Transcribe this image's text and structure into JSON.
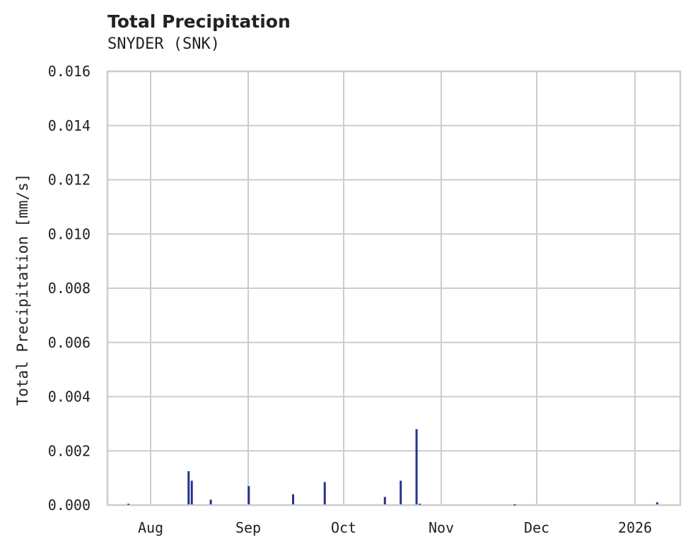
{
  "chart_data": {
    "type": "bar",
    "title": "Total Precipitation",
    "subtitle": "SNYDER (SNK)",
    "xlabel": "",
    "ylabel": "Total Precipitation [mm/s]",
    "ylim": [
      0,
      0.016
    ],
    "yticks": [
      "0.000",
      "0.002",
      "0.004",
      "0.006",
      "0.008",
      "0.010",
      "0.012",
      "0.014",
      "0.016"
    ],
    "xticks": [
      "Aug",
      "Sep",
      "Oct",
      "Nov",
      "Dec",
      "2026"
    ],
    "grid": true,
    "legend": "none",
    "series": [
      {
        "name": "Total Precipitation",
        "color": "#25338f",
        "points": [
          {
            "x": "2025-07-25",
            "y": 5e-05
          },
          {
            "x": "2025-08-13",
            "y": 0.00125
          },
          {
            "x": "2025-08-14",
            "y": 0.0009
          },
          {
            "x": "2025-08-20",
            "y": 0.0002
          },
          {
            "x": "2025-09-01",
            "y": 0.0007
          },
          {
            "x": "2025-09-15",
            "y": 0.0004
          },
          {
            "x": "2025-09-25",
            "y": 0.00085
          },
          {
            "x": "2025-10-14",
            "y": 0.0003
          },
          {
            "x": "2025-10-19",
            "y": 0.0009
          },
          {
            "x": "2025-10-24",
            "y": 0.0028
          },
          {
            "x": "2025-10-25",
            "y": 5e-05
          },
          {
            "x": "2025-11-24",
            "y": 3e-05
          },
          {
            "x": "2026-01-08",
            "y": 0.0001
          }
        ]
      }
    ]
  }
}
